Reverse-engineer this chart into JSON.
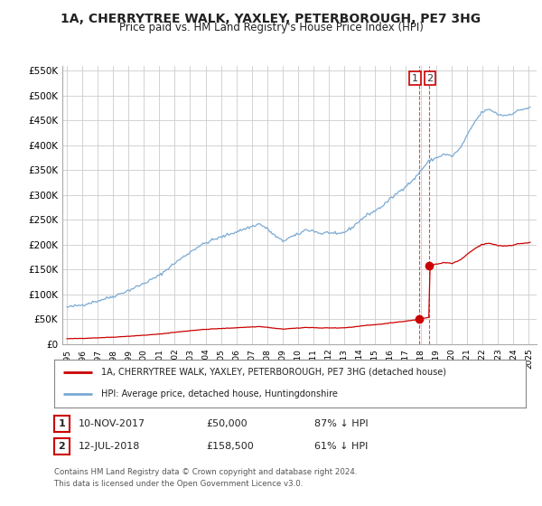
{
  "title": "1A, CHERRYTREE WALK, YAXLEY, PETERBOROUGH, PE7 3HG",
  "subtitle": "Price paid vs. HM Land Registry's House Price Index (HPI)",
  "title_fontsize": 10,
  "subtitle_fontsize": 8.5,
  "bg_color": "#ffffff",
  "grid_color": "#cccccc",
  "hpi_color": "#7aaad4",
  "sale_color": "#cc0000",
  "ylim": [
    0,
    560000
  ],
  "yticks": [
    0,
    50000,
    100000,
    150000,
    200000,
    250000,
    300000,
    350000,
    400000,
    450000,
    500000,
    550000
  ],
  "ytick_labels": [
    "£0",
    "£50K",
    "£100K",
    "£150K",
    "£200K",
    "£250K",
    "£300K",
    "£350K",
    "£400K",
    "£450K",
    "£500K",
    "£550K"
  ],
  "legend_label_red": "1A, CHERRYTREE WALK, YAXLEY, PETERBOROUGH, PE7 3HG (detached house)",
  "legend_label_blue": "HPI: Average price, detached house, Huntingdonshire",
  "transaction1_num": "1",
  "transaction1_date": "10-NOV-2017",
  "transaction1_price": "£50,000",
  "transaction1_hpi": "87% ↓ HPI",
  "transaction1_x": 2017.86,
  "transaction1_y": 50000,
  "transaction2_num": "2",
  "transaction2_date": "12-JUL-2018",
  "transaction2_price": "£158,500",
  "transaction2_hpi": "61% ↓ HPI",
  "transaction2_x": 2018.53,
  "transaction2_y": 158500,
  "footer": "Contains HM Land Registry data © Crown copyright and database right 2024.\nThis data is licensed under the Open Government Licence v3.0.",
  "xtick_years": [
    1995,
    1996,
    1997,
    1998,
    1999,
    2000,
    2001,
    2002,
    2003,
    2004,
    2005,
    2006,
    2007,
    2008,
    2009,
    2010,
    2011,
    2012,
    2013,
    2014,
    2015,
    2016,
    2017,
    2018,
    2019,
    2020,
    2021,
    2022,
    2023,
    2024,
    2025
  ]
}
